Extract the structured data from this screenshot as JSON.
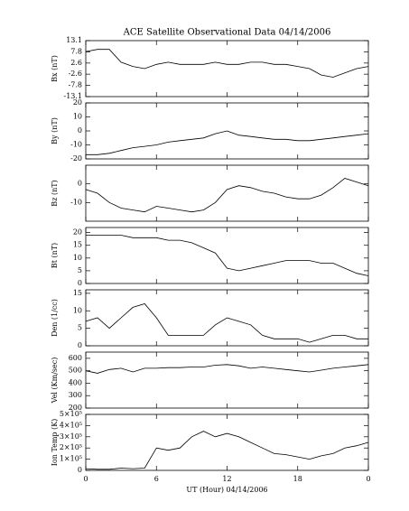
{
  "chart_data": [
    {
      "type": "line",
      "title": "ACE Satellite Observational Data   04/14/2006",
      "ylabel": "Bx (nT)",
      "color": "#000000",
      "x": [
        0,
        1,
        2,
        3,
        4,
        5,
        6,
        7,
        8,
        9,
        10,
        11,
        12,
        13,
        14,
        15,
        16,
        17,
        18,
        19,
        20,
        21,
        22,
        23,
        24
      ],
      "values": [
        8,
        9,
        9,
        3,
        1,
        0,
        2,
        3,
        2,
        2,
        2,
        3,
        2,
        2,
        3,
        3,
        2,
        2,
        1,
        0,
        -3,
        -4,
        -2,
        0,
        1
      ],
      "xlim": [
        0,
        24
      ],
      "xticks": [
        0,
        6,
        12,
        18,
        24
      ],
      "ylim": [
        -13.1,
        13.1
      ],
      "yticks": [
        13.1,
        7.8,
        2.6,
        -2.6,
        -7.8,
        -13.1
      ]
    },
    {
      "type": "line",
      "ylabel": "By (nT)",
      "color": "#000000",
      "x": [
        0,
        1,
        2,
        3,
        4,
        5,
        6,
        7,
        8,
        9,
        10,
        11,
        12,
        13,
        14,
        15,
        16,
        17,
        18,
        19,
        20,
        21,
        22,
        23,
        24
      ],
      "values": [
        -17,
        -17,
        -16,
        -14,
        -12,
        -11,
        -10,
        -8,
        -7,
        -6,
        -5,
        -2,
        0,
        -3,
        -4,
        -5,
        -6,
        -6,
        -7,
        -7,
        -6,
        -5,
        -4,
        -3,
        -2
      ],
      "xlim": [
        0,
        24
      ],
      "xticks": [
        0,
        6,
        12,
        18,
        24
      ],
      "ylim": [
        -20,
        20
      ],
      "yticks": [
        20,
        10,
        0,
        -10,
        -20
      ]
    },
    {
      "type": "line",
      "ylabel": "Bz (nT)",
      "color": "#000000",
      "x": [
        0,
        1,
        2,
        3,
        4,
        5,
        6,
        7,
        8,
        9,
        10,
        11,
        12,
        13,
        14,
        15,
        16,
        17,
        18,
        19,
        20,
        21,
        22,
        23,
        24
      ],
      "values": [
        -3,
        -5,
        -10,
        -13,
        -14,
        -15,
        -12,
        -13,
        -14,
        -15,
        -14,
        -10,
        -3,
        -1,
        -2,
        -4,
        -5,
        -7,
        -8,
        -8,
        -6,
        -2,
        3,
        1,
        -1
      ],
      "xlim": [
        0,
        24
      ],
      "xticks": [
        0,
        6,
        12,
        18,
        24
      ],
      "ylim": [
        -20,
        10
      ],
      "yticks": [
        0,
        -10
      ]
    },
    {
      "type": "line",
      "ylabel": "Bt (nT)",
      "color": "#000000",
      "x": [
        0,
        1,
        2,
        3,
        4,
        5,
        6,
        7,
        8,
        9,
        10,
        11,
        12,
        13,
        14,
        15,
        16,
        17,
        18,
        19,
        20,
        21,
        22,
        23,
        24
      ],
      "values": [
        19,
        19,
        19,
        19,
        18,
        18,
        18,
        17,
        17,
        16,
        14,
        12,
        6,
        5,
        6,
        7,
        8,
        9,
        9,
        9,
        8,
        8,
        6,
        4,
        3
      ],
      "xlim": [
        0,
        24
      ],
      "xticks": [
        0,
        6,
        12,
        18,
        24
      ],
      "ylim": [
        0,
        22
      ],
      "yticks": [
        20,
        15,
        10,
        5,
        0
      ]
    },
    {
      "type": "line",
      "ylabel": "Den (1/cc)",
      "color": "#000000",
      "x": [
        0,
        1,
        2,
        3,
        4,
        5,
        6,
        7,
        8,
        9,
        10,
        11,
        12,
        13,
        14,
        15,
        16,
        17,
        18,
        19,
        20,
        21,
        22,
        23,
        24
      ],
      "values": [
        7,
        8,
        5,
        8,
        11,
        12,
        8,
        3,
        3,
        3,
        3,
        6,
        8,
        7,
        6,
        3,
        2,
        2,
        2,
        1,
        2,
        3,
        3,
        2,
        2
      ],
      "xlim": [
        0,
        24
      ],
      "xticks": [
        0,
        6,
        12,
        18,
        24
      ],
      "ylim": [
        0,
        16
      ],
      "yticks": [
        15,
        10,
        5,
        0
      ]
    },
    {
      "type": "line",
      "ylabel": "Vel (Km/sec)",
      "color": "#000000",
      "x": [
        0,
        1,
        2,
        3,
        4,
        5,
        6,
        7,
        8,
        9,
        10,
        11,
        12,
        13,
        14,
        15,
        16,
        17,
        18,
        19,
        20,
        21,
        22,
        23,
        24
      ],
      "values": [
        500,
        480,
        510,
        520,
        490,
        520,
        520,
        525,
        525,
        530,
        530,
        545,
        550,
        540,
        520,
        530,
        520,
        510,
        500,
        490,
        505,
        520,
        530,
        540,
        550
      ],
      "xlim": [
        0,
        24
      ],
      "xticks": [
        0,
        6,
        12,
        18,
        24
      ],
      "ylim": [
        200,
        650
      ],
      "yticks": [
        600,
        500,
        400,
        300,
        200
      ]
    },
    {
      "type": "line",
      "ylabel": "Ion Temp (K)",
      "xlabel": "UT (Hour)   04/14/2006",
      "color": "#000000",
      "x": [
        0,
        1,
        2,
        3,
        4,
        5,
        6,
        7,
        8,
        9,
        10,
        11,
        12,
        13,
        14,
        15,
        16,
        17,
        18,
        19,
        20,
        21,
        22,
        23,
        24
      ],
      "values": [
        15000,
        10000,
        10000,
        20000,
        15000,
        20000,
        200000,
        180000,
        200000,
        300000,
        350000,
        300000,
        330000,
        300000,
        250000,
        200000,
        150000,
        140000,
        120000,
        100000,
        130000,
        150000,
        200000,
        220000,
        250000
      ],
      "xlim": [
        0,
        24
      ],
      "xticks": [
        0,
        6,
        12,
        18,
        {
          "value": 24,
          "label": "0"
        }
      ],
      "ylim": [
        0,
        500000
      ],
      "yticks": [
        {
          "value": 500000,
          "label": "5×10⁵"
        },
        {
          "value": 400000,
          "label": "4×10⁵"
        },
        {
          "value": 300000,
          "label": "3×10⁵"
        },
        {
          "value": 200000,
          "label": "2×10⁵"
        },
        {
          "value": 100000,
          "label": "1×10⁵"
        },
        0
      ]
    }
  ]
}
